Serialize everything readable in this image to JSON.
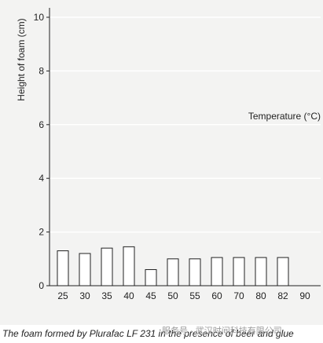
{
  "chart_data": {
    "type": "bar",
    "categories": [
      "25",
      "30",
      "35",
      "40",
      "45",
      "50",
      "55",
      "60",
      "70",
      "80",
      "82",
      "90"
    ],
    "values": [
      1.3,
      1.2,
      1.4,
      1.45,
      0.6,
      1.0,
      1.0,
      1.05,
      1.05,
      1.05,
      1.05,
      0
    ],
    "ylabel": "Height of foam (cm)",
    "xlabel": "Temperature (°C)",
    "ylim": [
      0,
      10
    ],
    "yticks": [
      0,
      2,
      4,
      6,
      8,
      10
    ],
    "grid": true,
    "colors": {
      "bar_fill": "#ffffff",
      "bar_stroke": "#222222",
      "grid": "#ffffff",
      "background": "#f3f3f2"
    }
  },
  "caption": "The foam formed by Plurafac LF 231 in the presence of beer and glue",
  "watermark": "服务号 · 武汉时间科技有限公司"
}
